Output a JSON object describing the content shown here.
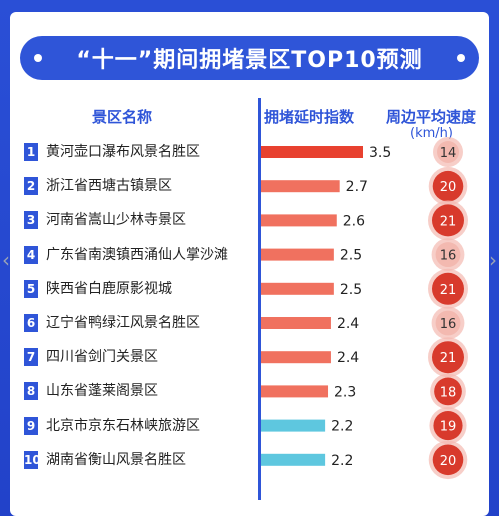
{
  "title": "“十一”期间拥堵景区TOP10预测",
  "headers": {
    "name": "景区名称",
    "index": "拥堵延时指数",
    "speed": "周边平均速度",
    "speed_unit": "(km/h)"
  },
  "colors": {
    "primary": "#2f55d8",
    "bar_high": "#e8412f",
    "bar_mid": "#f0715f",
    "bar_low": "#5ec7df",
    "circle_dark": "#d83a2c",
    "circle_light": "#f3b9b0"
  },
  "chart_data": {
    "type": "bar",
    "categories": [
      "黄河壶口瀑布风景名胜区",
      "浙江省西塘古镇景区",
      "河南省嵩山少林寺景区",
      "广东省南澳镇西涌仙人掌沙滩",
      "陕西省白鹿原影视城",
      "辽宁省鸭绿江风景名胜区",
      "四川省剑门关景区",
      "山东省蓬莱阁景区",
      "北京市京东石林峡旅游区",
      "湖南省衡山风景名胜区"
    ],
    "ranks": [
      "1",
      "2",
      "3",
      "4",
      "5",
      "6",
      "7",
      "8",
      "9",
      "10"
    ],
    "series": [
      {
        "name": "拥堵延时指数",
        "values": [
          3.5,
          2.7,
          2.6,
          2.5,
          2.5,
          2.4,
          2.4,
          2.3,
          2.2,
          2.2
        ]
      },
      {
        "name": "周边平均速度",
        "values": [
          14,
          20,
          21,
          16,
          21,
          16,
          21,
          18,
          19,
          20
        ]
      }
    ],
    "value_labels": [
      "3.5",
      "2.7",
      "2.6",
      "2.5",
      "2.5",
      "2.4",
      "2.4",
      "2.3",
      "2.2",
      "2.2"
    ],
    "speed_labels": [
      "14",
      "20",
      "21",
      "16",
      "21",
      "16",
      "21",
      "18",
      "19",
      "20"
    ]
  }
}
